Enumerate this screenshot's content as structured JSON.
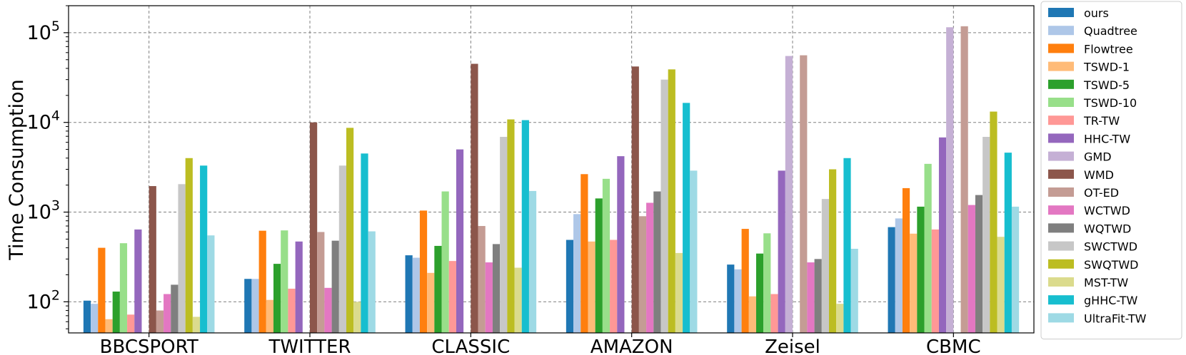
{
  "chart_data": {
    "type": "bar",
    "ylabel": "Time Consumption",
    "xlabel": "",
    "yscale": "log",
    "ylim": [
      45,
      200000
    ],
    "grid": true,
    "legend_position": "right-outside",
    "yticks": [
      {
        "value": 100,
        "base": "10",
        "exp": "2"
      },
      {
        "value": 1000,
        "base": "10",
        "exp": "3"
      },
      {
        "value": 10000,
        "base": "10",
        "exp": "4"
      },
      {
        "value": 100000,
        "base": "10",
        "exp": "5"
      }
    ],
    "categories": [
      "BBCSPORT",
      "TWITTER",
      "CLASSIC",
      "AMAZON",
      "Zeisel",
      "CBMC"
    ],
    "series": [
      {
        "name": "ours",
        "color": "#1f77b4",
        "values": [
          103,
          180,
          330,
          490,
          260,
          680
        ]
      },
      {
        "name": "Quadtree",
        "color": "#aec7e8",
        "values": [
          95,
          180,
          310,
          950,
          230,
          850
        ]
      },
      {
        "name": "Flowtree",
        "color": "#ff7f0e",
        "values": [
          400,
          620,
          1040,
          2650,
          650,
          1850
        ]
      },
      {
        "name": "TSWD-1",
        "color": "#ffbb78",
        "values": [
          64,
          105,
          210,
          470,
          115,
          575
        ]
      },
      {
        "name": "TSWD-5",
        "color": "#2ca02c",
        "values": [
          130,
          265,
          420,
          1420,
          345,
          1150
        ]
      },
      {
        "name": "TSWD-10",
        "color": "#98df8a",
        "values": [
          450,
          625,
          1700,
          2350,
          580,
          3450
        ]
      },
      {
        "name": "TR-TW",
        "color": "#ff9896",
        "values": [
          72,
          140,
          285,
          490,
          122,
          640
        ]
      },
      {
        "name": "HHC-TW",
        "color": "#9467bd",
        "values": [
          640,
          470,
          5000,
          4200,
          2900,
          6800
        ]
      },
      {
        "name": "GMD",
        "color": "#c5b0d5",
        "values": [
          null,
          null,
          null,
          null,
          55000,
          115000
        ]
      },
      {
        "name": "WMD",
        "color": "#8c564b",
        "values": [
          1950,
          10000,
          45000,
          42000,
          null,
          null
        ]
      },
      {
        "name": "OT-ED",
        "color": "#c49c94",
        "values": [
          80,
          600,
          700,
          900,
          56000,
          118000
        ]
      },
      {
        "name": "WCTWD",
        "color": "#e377c2",
        "values": [
          122,
          143,
          275,
          1270,
          275,
          1200
        ]
      },
      {
        "name": "WQTWD",
        "color": "#7f7f7f",
        "values": [
          155,
          480,
          440,
          1700,
          300,
          1550
        ]
      },
      {
        "name": "SWCTWD",
        "color": "#c7c7c7",
        "values": [
          2050,
          3300,
          6900,
          30000,
          1400,
          6900
        ]
      },
      {
        "name": "SWQTWD",
        "color": "#bcbd22",
        "values": [
          4000,
          8700,
          10800,
          39000,
          3000,
          13200
        ]
      },
      {
        "name": "MST-TW",
        "color": "#dbdb8d",
        "values": [
          68,
          100,
          240,
          350,
          95,
          530
        ]
      },
      {
        "name": "gHHC-TW",
        "color": "#17becf",
        "values": [
          3300,
          4500,
          10600,
          16500,
          4000,
          4600
        ]
      },
      {
        "name": "UltraFit-TW",
        "color": "#9edae5",
        "values": [
          550,
          610,
          1720,
          2900,
          390,
          1150
        ]
      }
    ]
  }
}
